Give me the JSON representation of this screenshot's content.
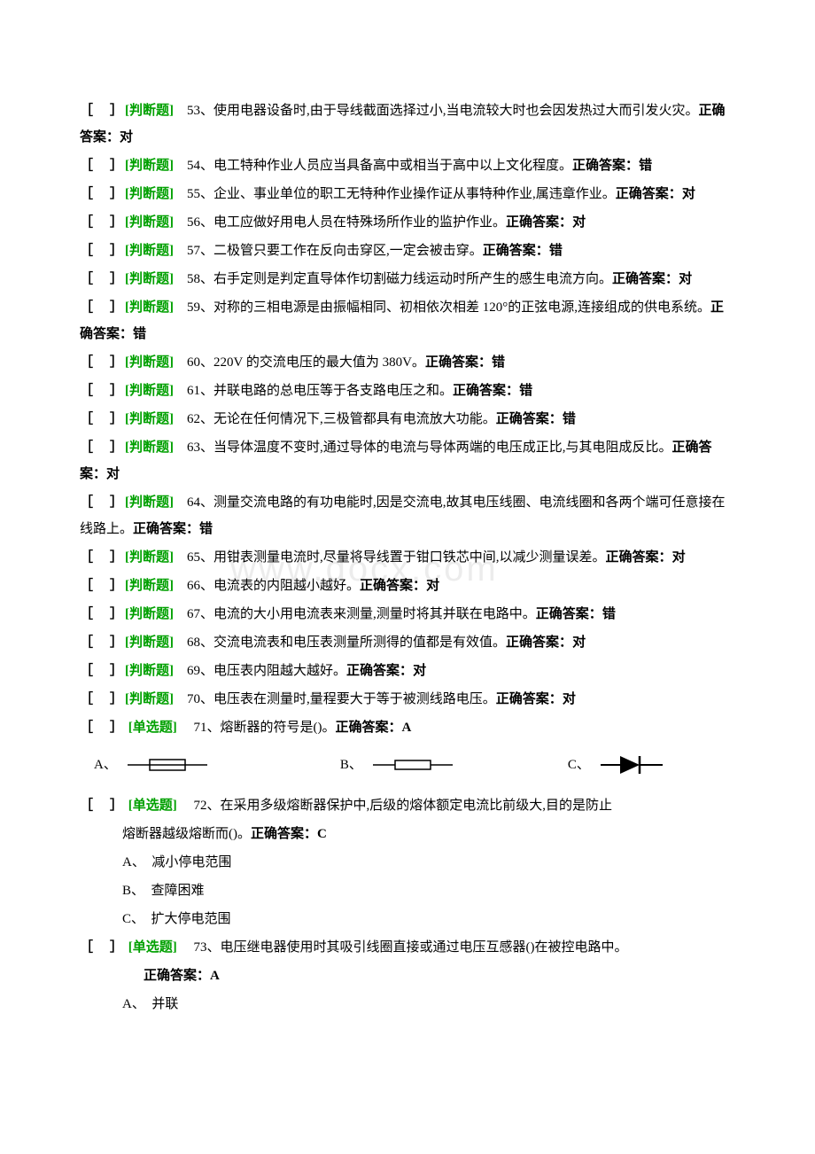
{
  "watermark": "www.docx.com",
  "bracket_text": "［　］",
  "tag_label": "[判断题]",
  "tag_label_single": "[单选题]",
  "answer_prefix": "正确答案：",
  "questions": [
    {
      "num": "53",
      "type": "tf",
      "text": "、使用电器设备时,由于导线截面选择过小,当电流较大时也会因发热过大而引发火灾。",
      "answer": "对"
    },
    {
      "num": "54",
      "type": "tf",
      "text": "、电工特种作业人员应当具备高中或相当于高中以上文化程度。",
      "answer": "错"
    },
    {
      "num": "55",
      "type": "tf",
      "text": "、企业、事业单位的职工无特种作业操作证从事特种作业,属违章作业。",
      "answer": "对"
    },
    {
      "num": "56",
      "type": "tf",
      "text": "、电工应做好用电人员在特殊场所作业的监护作业。",
      "answer": "对"
    },
    {
      "num": "57",
      "type": "tf",
      "text": "、二极管只要工作在反向击穿区,一定会被击穿。",
      "answer": "错"
    },
    {
      "num": "58",
      "type": "tf",
      "text": "、右手定则是判定直导体作切割磁力线运动时所产生的感生电流方向。",
      "answer": "对"
    },
    {
      "num": "59",
      "type": "tf",
      "text": "、对称的三相电源是由振幅相同、初相依次相差 120°的正弦电源,连接组成的供电系统。",
      "answer": "错"
    },
    {
      "num": "60",
      "type": "tf",
      "text": "、220V 的交流电压的最大值为 380V。",
      "answer": "错"
    },
    {
      "num": "61",
      "type": "tf",
      "text": "、并联电路的总电压等于各支路电压之和。",
      "answer": "错"
    },
    {
      "num": "62",
      "type": "tf",
      "text": "、无论在任何情况下,三极管都具有电流放大功能。",
      "answer": "错"
    },
    {
      "num": "63",
      "type": "tf",
      "text": "、当导体温度不变时,通过导体的电流与导体两端的电压成正比,与其电阻成反比。",
      "answer": "对"
    },
    {
      "num": "64",
      "type": "tf",
      "text": "、测量交流电路的有功电能时,因是交流电,故其电压线圈、电流线圈和各两个端可任意接在线路上。",
      "answer": "错"
    },
    {
      "num": "65",
      "type": "tf",
      "text": "、用钳表测量电流时,尽量将导线置于钳口铁芯中间,以减少测量误差。",
      "answer": "对"
    },
    {
      "num": "66",
      "type": "tf",
      "text": "、电流表的内阻越小越好。",
      "answer": "对"
    },
    {
      "num": "67",
      "type": "tf",
      "text": "、电流的大小用电流表来测量,测量时将其并联在电路中。",
      "answer": "错"
    },
    {
      "num": "68",
      "type": "tf",
      "text": "、交流电流表和电压表测量所测得的值都是有效值。",
      "answer": "对"
    },
    {
      "num": "69",
      "type": "tf",
      "text": "、电压表内阻越大越好。",
      "answer": "对"
    },
    {
      "num": "70",
      "type": "tf",
      "text": "、电压表在测量时,量程要大于等于被测线路电压。",
      "answer": "对"
    }
  ],
  "q71": {
    "num": "71",
    "text": "、熔断器的符号是()。",
    "answer": "A",
    "options": {
      "A": "A、",
      "B": "B、",
      "C": "C、"
    }
  },
  "q72": {
    "num": "72",
    "text_part1": "、在采用多级熔断器保护中,后级的熔体额定电流比前级大,目的是防止",
    "text_part2": "熔断器越级熔断而()。",
    "answer": "C",
    "options": {
      "A": "A、　减小停电范围",
      "B": "B、　查障困难",
      "C": "C、　扩大停电范围"
    }
  },
  "q73": {
    "num": "73",
    "text": "、电压继电器使用时其吸引线圈直接或通过电压互感器()在被控电路中。",
    "answer": "A",
    "options": {
      "A": "A、　并联"
    }
  }
}
